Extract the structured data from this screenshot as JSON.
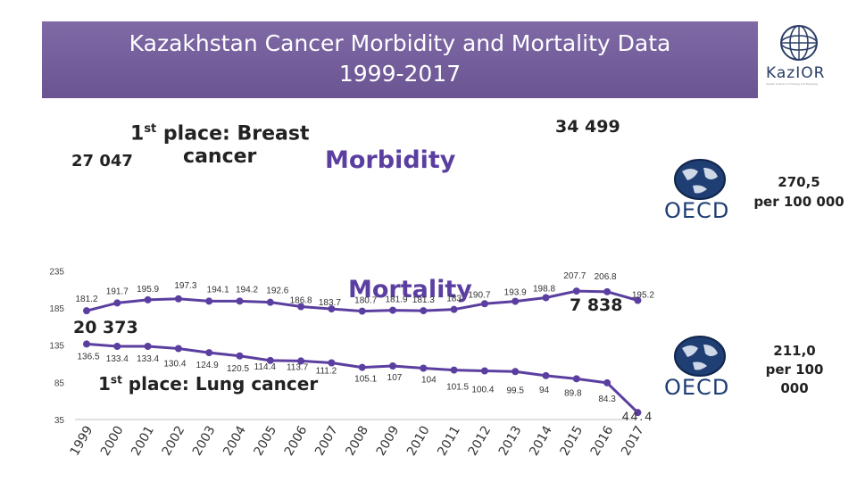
{
  "header": {
    "title_line1": "Kazakhstan Cancer Morbidity and Mortality Data",
    "title_line2": "1999-2017"
  },
  "brand": {
    "logo_text": "KazIOR",
    "logo_tagline": "Kazakh Institute of Oncology and Radiology",
    "oecd_text": "OECD",
    "accent_color": "#5b3fa0",
    "band_color": "#6e5798"
  },
  "annotations": {
    "breast_title_main": "1",
    "breast_title_sup": "st",
    "breast_title_rest": " place: Breast",
    "breast_title_line2": "cancer",
    "morbidity_label": "Morbidity",
    "mortality_label": "Mortality",
    "morbidity_start_count": "27 047",
    "morbidity_end_count": "34 499",
    "mortality_start_count": "20 373",
    "mortality_end_count": "7 838",
    "lung_title_main": "1",
    "lung_title_sup": "st",
    "lung_title_rest": " place: Lung cancer",
    "oecd_morbidity_rate_line1": "270,5",
    "oecd_morbidity_rate_line2": "per 100 000",
    "oecd_mortality_rate_line1": "211,0",
    "oecd_mortality_rate_line2": "per 100",
    "oecd_mortality_rate_line3": "000"
  },
  "chart_data": {
    "type": "line",
    "x": [
      "1999",
      "2000",
      "2001",
      "2002",
      "2003",
      "2004",
      "2005",
      "2006",
      "2007",
      "2008",
      "2009",
      "2010",
      "2011",
      "2012",
      "2013",
      "2014",
      "2015",
      "2016",
      "2017"
    ],
    "yticks": [
      35,
      85,
      135,
      185,
      235
    ],
    "ylim": [
      35,
      235
    ],
    "grid": false,
    "series": [
      {
        "name": "Morbidity",
        "color": "#5b3fa0",
        "values": [
          181.2,
          191.7,
          195.9,
          197.3,
          194.1,
          194.2,
          192.6,
          186.8,
          183.7,
          180.7,
          181.9,
          181.3,
          183,
          190.7,
          193.9,
          198.8,
          207.7,
          206.8,
          195.2
        ],
        "labels": [
          "181.2",
          "191.7",
          "195.9",
          "197.3",
          "194.1",
          "194.2",
          "192.6",
          "186.8",
          "183.7",
          "180.7",
          "181.9",
          "181.3",
          "183",
          "190.7",
          "193.9",
          "198.8",
          "207.7",
          "206.8",
          "195.2"
        ]
      },
      {
        "name": "Mortality",
        "color": "#5b3fa0",
        "values": [
          136.5,
          133.4,
          133.4,
          130.4,
          124.9,
          120.5,
          114.4,
          113.7,
          111.2,
          105.1,
          107,
          104,
          101.5,
          100.4,
          99.5,
          94,
          89.8,
          84.3,
          44.4
        ],
        "labels": [
          "136.5",
          "133.4",
          "133.4",
          "130.4",
          "124.9",
          "120.5",
          "114.4",
          "113.7",
          "111.2",
          "105.1",
          "107",
          "104",
          "101.5",
          "100.4",
          "99.5",
          "94",
          "89.8",
          "84.3",
          "44.4"
        ]
      }
    ]
  }
}
